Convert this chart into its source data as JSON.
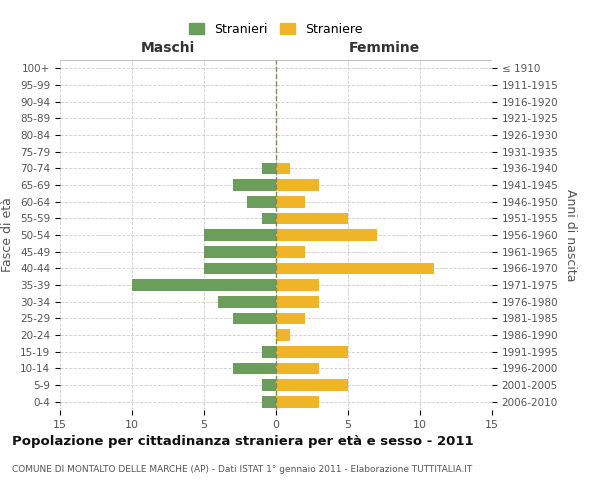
{
  "age_groups": [
    "0-4",
    "5-9",
    "10-14",
    "15-19",
    "20-24",
    "25-29",
    "30-34",
    "35-39",
    "40-44",
    "45-49",
    "50-54",
    "55-59",
    "60-64",
    "65-69",
    "70-74",
    "75-79",
    "80-84",
    "85-89",
    "90-94",
    "95-99",
    "100+"
  ],
  "birth_years": [
    "2006-2010",
    "2001-2005",
    "1996-2000",
    "1991-1995",
    "1986-1990",
    "1981-1985",
    "1976-1980",
    "1971-1975",
    "1966-1970",
    "1961-1965",
    "1956-1960",
    "1951-1955",
    "1946-1950",
    "1941-1945",
    "1936-1940",
    "1931-1935",
    "1926-1930",
    "1921-1925",
    "1916-1920",
    "1911-1915",
    "≤ 1910"
  ],
  "males": [
    1,
    1,
    3,
    1,
    0,
    3,
    4,
    10,
    5,
    5,
    5,
    1,
    2,
    3,
    1,
    0,
    0,
    0,
    0,
    0,
    0
  ],
  "females": [
    3,
    5,
    3,
    5,
    1,
    2,
    3,
    3,
    11,
    2,
    7,
    5,
    2,
    3,
    1,
    0,
    0,
    0,
    0,
    0,
    0
  ],
  "male_color": "#6a9e5a",
  "female_color": "#f0b429",
  "center_line_color": "#888855",
  "grid_color": "#cccccc",
  "bg_color": "#ffffff",
  "title": "Popolazione per cittadinanza straniera per età e sesso - 2011",
  "subtitle": "COMUNE DI MONTALTO DELLE MARCHE (AP) - Dati ISTAT 1° gennaio 2011 - Elaborazione TUTTITALIA.IT",
  "xlabel_left": "Maschi",
  "xlabel_right": "Femmine",
  "ylabel_left": "Fasce di età",
  "ylabel_right": "Anni di nascita",
  "legend_male": "Stranieri",
  "legend_female": "Straniere",
  "xlim": 15
}
